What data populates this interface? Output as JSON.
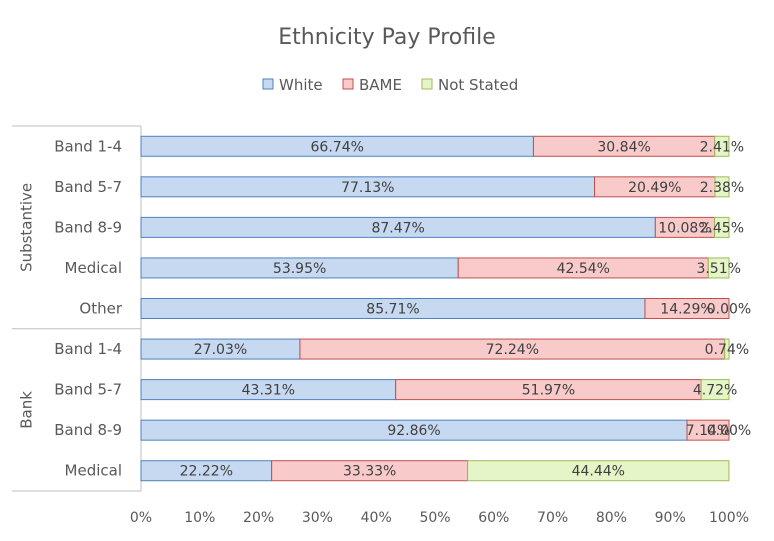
{
  "chart_data": {
    "type": "bar",
    "orientation": "horizontal",
    "stacked": "100%",
    "title": "Ethnicity Pay Profile",
    "groups": [
      {
        "label": "Substantive",
        "categories": [
          "Band 1-4",
          "Band 5-7",
          "Band 8-9",
          "Medical",
          "Other"
        ]
      },
      {
        "label": "Bank",
        "categories": [
          "Band 1-4",
          "Band 5-7",
          "Band 8-9",
          "Medical"
        ]
      }
    ],
    "series": [
      {
        "name": "White",
        "color": "#c6d9f1",
        "edge": "#4f81bd",
        "values": [
          66.74,
          77.13,
          87.47,
          53.95,
          85.71,
          27.03,
          43.31,
          92.86,
          22.22
        ],
        "labels": [
          "66.74%",
          "77.13%",
          "87.47%",
          "53.95%",
          "85.71%",
          "27.03%",
          "43.31%",
          "92.86%",
          "22.22%"
        ]
      },
      {
        "name": "BAME",
        "color": "#f8caca",
        "edge": "#c0504d",
        "values": [
          30.84,
          20.49,
          10.08,
          42.54,
          14.29,
          72.24,
          51.97,
          7.14,
          33.33
        ],
        "labels": [
          "30.84%",
          "20.49%",
          "10.08%",
          "42.54%",
          "14.29%",
          "72.24%",
          "51.97%",
          "7.14%",
          "33.33%"
        ]
      },
      {
        "name": "Not Stated",
        "color": "#e6f5c8",
        "edge": "#9bbb59",
        "values": [
          2.41,
          2.38,
          2.45,
          3.51,
          0.0,
          0.74,
          4.72,
          0.0,
          44.44
        ],
        "labels": [
          "2.41%",
          "2.38%",
          "2.45%",
          "3.51%",
          "0.00%",
          "0.74%",
          "4.72%",
          "0.00%",
          "44.44%"
        ]
      }
    ],
    "x_ticks": [
      "0%",
      "10%",
      "20%",
      "30%",
      "40%",
      "50%",
      "60%",
      "70%",
      "80%",
      "90%",
      "100%"
    ],
    "xlim": [
      0,
      100
    ],
    "grid": false,
    "legend_position": "top"
  }
}
